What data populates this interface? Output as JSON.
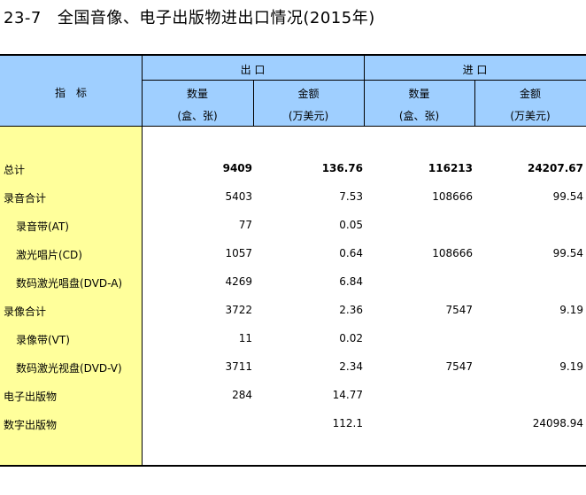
{
  "title": {
    "code": "23-7",
    "text": "全国音像、电子出版物进出口情况(2015年)"
  },
  "header": {
    "indicator": "指　标",
    "export": "出 口",
    "import": "进 口",
    "qty": "数量",
    "qty_unit": "(盒、张)",
    "amt": "金额",
    "amt_unit": "(万美元)"
  },
  "rows": [
    {
      "label": "总计",
      "indent": false,
      "bold": true,
      "exp_qty": "9409",
      "exp_amt": "136.76",
      "imp_qty": "116213",
      "imp_amt": "24207.67"
    },
    {
      "label": "录音合计",
      "indent": false,
      "bold": false,
      "exp_qty": "5403",
      "exp_amt": "7.53",
      "imp_qty": "108666",
      "imp_amt": "99.54"
    },
    {
      "label": "录音带(AT)",
      "indent": true,
      "bold": false,
      "exp_qty": "77",
      "exp_amt": "0.05",
      "imp_qty": "",
      "imp_amt": ""
    },
    {
      "label": "激光唱片(CD)",
      "indent": true,
      "bold": false,
      "exp_qty": "1057",
      "exp_amt": "0.64",
      "imp_qty": "108666",
      "imp_amt": "99.54"
    },
    {
      "label": "数码激光唱盘(DVD-A)",
      "indent": true,
      "bold": false,
      "exp_qty": "4269",
      "exp_amt": "6.84",
      "imp_qty": "",
      "imp_amt": ""
    },
    {
      "label": "录像合计",
      "indent": false,
      "bold": false,
      "exp_qty": "3722",
      "exp_amt": "2.36",
      "imp_qty": "7547",
      "imp_amt": "9.19"
    },
    {
      "label": "录像带(VT)",
      "indent": true,
      "bold": false,
      "exp_qty": "11",
      "exp_amt": "0.02",
      "imp_qty": "",
      "imp_amt": ""
    },
    {
      "label": "数码激光视盘(DVD-V)",
      "indent": true,
      "bold": false,
      "exp_qty": "3711",
      "exp_amt": "2.34",
      "imp_qty": "7547",
      "imp_amt": "9.19"
    },
    {
      "label": "电子出版物",
      "indent": false,
      "bold": false,
      "exp_qty": "284",
      "exp_amt": "14.77",
      "imp_qty": "",
      "imp_amt": ""
    },
    {
      "label": "数字出版物",
      "indent": false,
      "bold": false,
      "exp_qty": "",
      "exp_amt": "112.1",
      "imp_qty": "",
      "imp_amt": "24098.94"
    }
  ]
}
